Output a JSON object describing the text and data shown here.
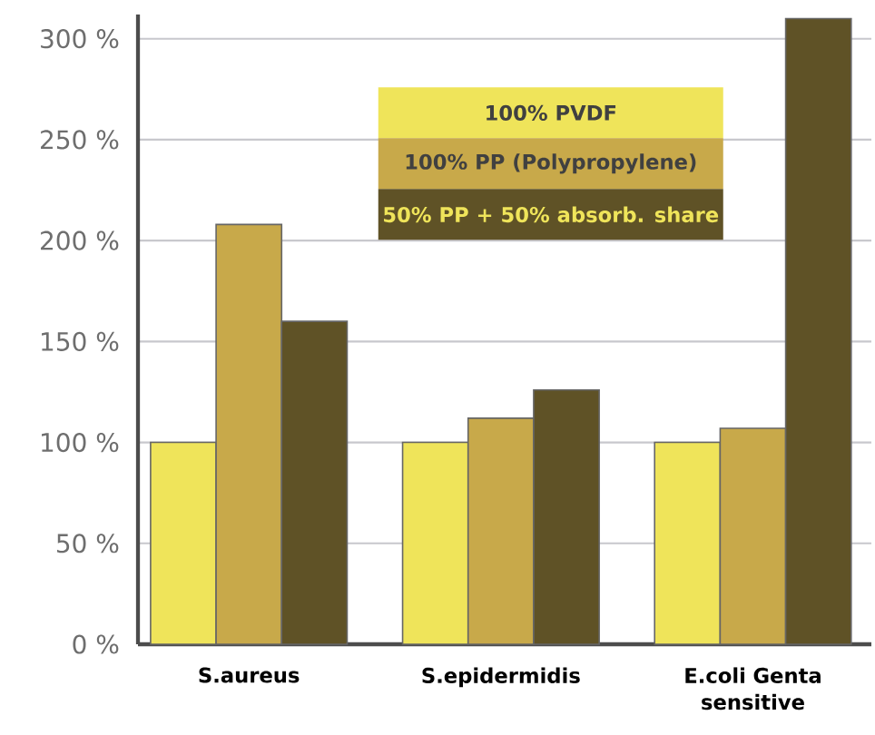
{
  "chart_data": {
    "type": "bar",
    "categories": [
      "S.aureus",
      "S.epidermidis",
      "E.coli Genta sensitive"
    ],
    "series": [
      {
        "name": "100% PVDF",
        "color": "#efe45a",
        "values": [
          100,
          100,
          100
        ]
      },
      {
        "name": "100% PP (Polypropylene)",
        "color": "#c8a94a",
        "values": [
          208,
          112,
          107
        ]
      },
      {
        "name": "50% PP + 50% absorb. share",
        "color": "#5f5226",
        "values": [
          160,
          126,
          310
        ]
      }
    ],
    "ylim": [
      0,
      312
    ],
    "yticks": [
      {
        "value": 0,
        "label": "0 %"
      },
      {
        "value": 50,
        "label": "50 %"
      },
      {
        "value": 100,
        "label": "100 %"
      },
      {
        "value": 150,
        "label": "150 %"
      },
      {
        "value": 200,
        "label": "200 %"
      },
      {
        "value": 250,
        "label": "250 %"
      },
      {
        "value": 300,
        "label": "300 %"
      }
    ],
    "grid": "y",
    "legend": "top"
  }
}
